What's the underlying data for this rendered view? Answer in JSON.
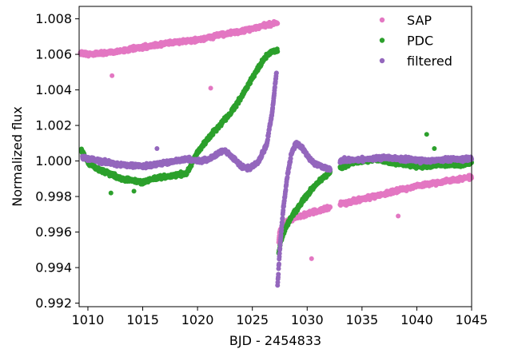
{
  "chart_data": {
    "type": "scatter",
    "title": "",
    "xlabel": "BJD - 2454833",
    "ylabel": "Normalized flux",
    "xlim": [
      1009.2,
      1045
    ],
    "ylim": [
      0.9918,
      1.0087
    ],
    "xticks": [
      1010,
      1015,
      1020,
      1025,
      1030,
      1035,
      1040,
      1045
    ],
    "xtick_labels": [
      "1010",
      "1015",
      "1020",
      "1025",
      "1030",
      "1035",
      "1040",
      "1045"
    ],
    "yticks": [
      0.992,
      0.994,
      0.996,
      0.998,
      1.0,
      1.002,
      1.004,
      1.006,
      1.008
    ],
    "ytick_labels": [
      "0.992",
      "0.994",
      "0.996",
      "0.998",
      "1.000",
      "1.002",
      "1.004",
      "1.006",
      "1.008"
    ],
    "grid": false,
    "legend_position": "top-right",
    "series": [
      {
        "name": "SAP",
        "color": "#e377c2",
        "segments": [
          {
            "x": [
              1009.3,
              1010,
              1012,
              1014,
              1016,
              1018,
              1020,
              1022,
              1024,
              1026,
              1027.3
            ],
            "y": [
              1.0061,
              1.006,
              1.0061,
              1.0063,
              1.0065,
              1.0067,
              1.0068,
              1.0071,
              1.0073,
              1.0076,
              1.0078
            ]
          },
          {
            "x": [
              1027.4,
              1027.5,
              1027.8,
              1028.2,
              1028.8,
              1029.5,
              1030.3,
              1031.2,
              1032.1
            ],
            "y": [
              0.9955,
              0.996,
              0.9964,
              0.9966,
              0.9968,
              0.9969,
              0.9971,
              0.9972,
              0.9974
            ]
          },
          {
            "x": [
              1033.0,
              1034,
              1036,
              1038,
              1040,
              1042,
              1044,
              1045
            ],
            "y": [
              0.9976,
              0.9977,
              0.998,
              0.9983,
              0.9986,
              0.9988,
              0.999,
              0.9991
            ]
          }
        ],
        "outliers": [
          {
            "x": 1012.2,
            "y": 1.0048
          },
          {
            "x": 1021.2,
            "y": 1.0041
          },
          {
            "x": 1030.4,
            "y": 0.9945
          },
          {
            "x": 1038.3,
            "y": 0.9969
          }
        ]
      },
      {
        "name": "PDC",
        "color": "#2ca02c",
        "segments": [
          {
            "x": [
              1009.4,
              1010,
              1011,
              1012,
              1013,
              1014,
              1015,
              1016,
              1017,
              1018,
              1019,
              1020,
              1021,
              1022,
              1023,
              1024,
              1025,
              1026,
              1026.6,
              1027.3
            ],
            "y": [
              1.0006,
              0.9999,
              0.9995,
              0.9993,
              0.999,
              0.9989,
              0.9988,
              0.999,
              0.9991,
              0.9992,
              0.9993,
              1.0005,
              1.0013,
              1.002,
              1.0027,
              1.0036,
              1.0047,
              1.0057,
              1.0061,
              1.0062
            ]
          },
          {
            "x": [
              1027.4,
              1027.6,
              1028.0,
              1028.6,
              1029.3,
              1030.0,
              1031.0,
              1032.1
            ],
            "y": [
              0.9948,
              0.9955,
              0.9962,
              0.9969,
              0.9975,
              0.9981,
              0.9988,
              0.9994
            ]
          },
          {
            "x": [
              1033.0,
              1034,
              1035,
              1036,
              1037,
              1038,
              1039,
              1040,
              1041,
              1042,
              1043,
              1044,
              1045
            ],
            "y": [
              0.9996,
              0.9999,
              1.0,
              1.0001,
              1.0,
              0.9999,
              0.9998,
              0.9997,
              0.9997,
              0.9998,
              0.9998,
              0.9998,
              0.9999
            ]
          }
        ],
        "outliers": [
          {
            "x": 1012.1,
            "y": 0.9982
          },
          {
            "x": 1014.2,
            "y": 0.9983
          },
          {
            "x": 1040.9,
            "y": 1.0015
          },
          {
            "x": 1041.6,
            "y": 1.0007
          }
        ]
      },
      {
        "name": "filtered",
        "color": "#9467bd",
        "segments": [
          {
            "x": [
              1009.5,
              1011,
              1013,
              1015,
              1017,
              1019,
              1020,
              1021,
              1021.8,
              1022.5,
              1023.2,
              1024.0,
              1024.8,
              1025.6,
              1026.3,
              1026.8,
              1027.2
            ],
            "y": [
              1.0002,
              1.0,
              0.9998,
              0.9997,
              0.9999,
              1.0001,
              1.0,
              1.0001,
              1.0004,
              1.0006,
              1.0002,
              0.9997,
              0.9996,
              1.0,
              1.0009,
              1.0027,
              1.005
            ]
          },
          {
            "x": [
              1027.3,
              1027.5,
              1027.8,
              1028.2,
              1028.6,
              1029.0,
              1029.5,
              1030.0,
              1030.6,
              1031.3,
              1032.1
            ],
            "y": [
              0.993,
              0.995,
              0.9972,
              0.9992,
              1.0005,
              1.001,
              1.0008,
              1.0003,
              0.9999,
              0.9997,
              0.9995
            ]
          },
          {
            "x": [
              1033.0,
              1035,
              1037,
              1039,
              1041,
              1043,
              1045
            ],
            "y": [
              1.0,
              1.0001,
              1.0002,
              1.0001,
              1.0,
              1.0001,
              1.0001
            ]
          }
        ],
        "outliers": [
          {
            "x": 1016.3,
            "y": 1.0007
          },
          {
            "x": 1033.4,
            "y": 1.0002
          }
        ]
      }
    ]
  }
}
